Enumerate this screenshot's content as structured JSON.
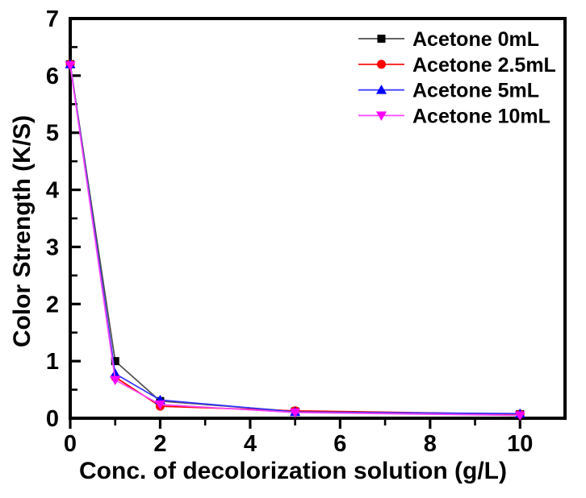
{
  "figure": {
    "background": "#ffffff"
  },
  "chart_data": {
    "type": "line",
    "title": "",
    "xlabel": "Conc. of decolorization solution (g/L)",
    "ylabel": "Color Strength (K/S)",
    "xlim": [
      0,
      11
    ],
    "ylim": [
      0,
      7
    ],
    "x_major_ticks": [
      0,
      2,
      4,
      6,
      8,
      10
    ],
    "x_minor_ticks": [
      1,
      3,
      5,
      7,
      9
    ],
    "y_major_ticks": [
      0,
      1,
      2,
      3,
      4,
      5,
      6,
      7
    ],
    "y_minor_ticks": [
      0.5,
      1.5,
      2.5,
      3.5,
      4.5,
      5.5,
      6.5
    ],
    "grid": false,
    "legend_position": "top-right",
    "axis_color": "#000000",
    "x": [
      0,
      1,
      2,
      5,
      10
    ],
    "series": [
      {
        "name": "Acetone 0mL",
        "marker": "square",
        "color": "#000000",
        "line_color": "#4d4d4d",
        "values": [
          6.2,
          1.0,
          0.3,
          0.12,
          0.07
        ]
      },
      {
        "name": "Acetone 2.5mL",
        "marker": "circle",
        "color": "#ff0000",
        "line_color": "#ff0000",
        "values": [
          6.2,
          0.72,
          0.21,
          0.13,
          0.07
        ]
      },
      {
        "name": "Acetone 5mL",
        "marker": "triangle-up",
        "color": "#0000ff",
        "line_color": "#3333ff",
        "values": [
          6.2,
          0.78,
          0.32,
          0.11,
          0.08
        ]
      },
      {
        "name": "Acetone 10mL",
        "marker": "triangle-down",
        "color": "#ff00ff",
        "line_color": "#ff44ff",
        "values": [
          6.18,
          0.67,
          0.24,
          0.1,
          0.05
        ]
      }
    ]
  }
}
